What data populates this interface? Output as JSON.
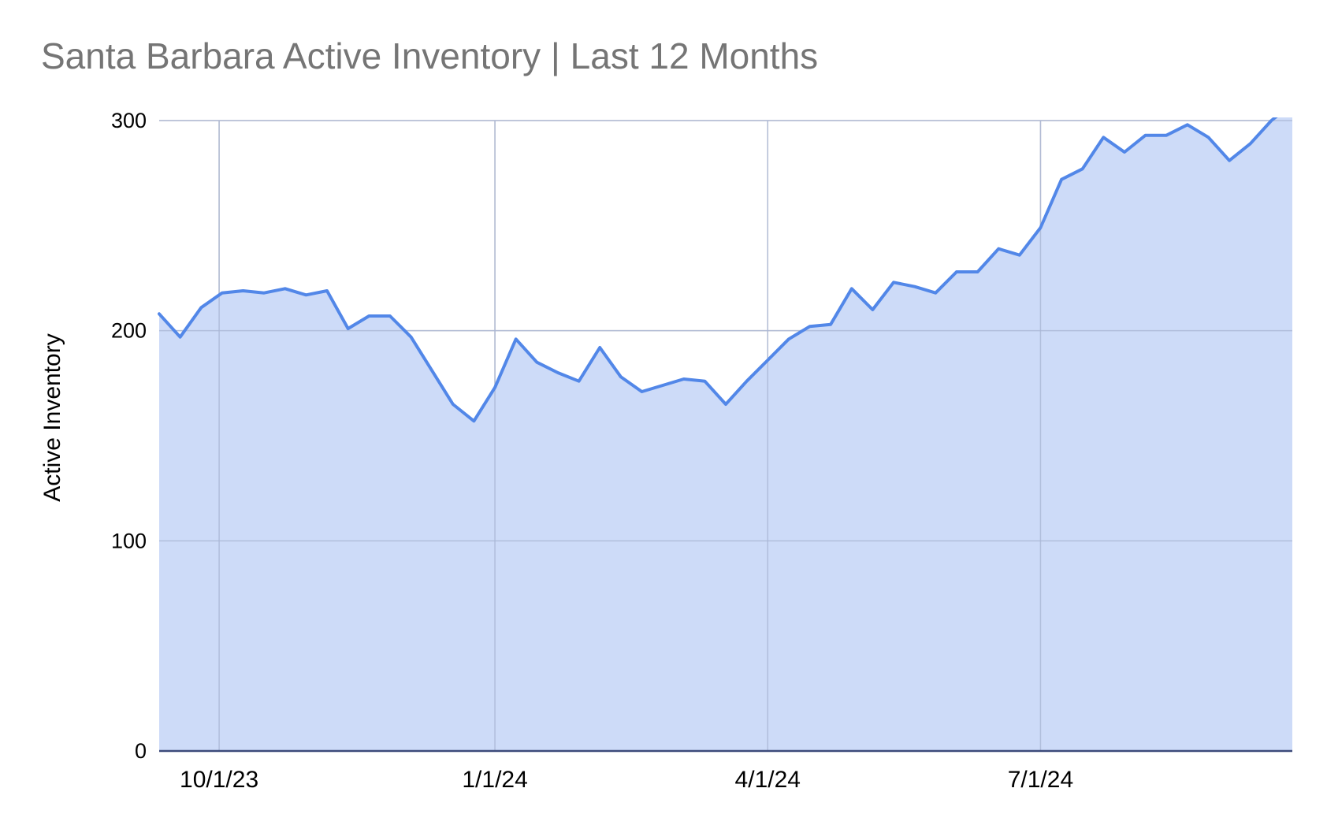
{
  "chart_data": {
    "type": "area",
    "title": "Santa Barbara Active Inventory | Last 12 Months",
    "xlabel": "",
    "ylabel": "Active Inventory",
    "ylim": [
      0,
      300
    ],
    "y_ticks": [
      0,
      100,
      200,
      300
    ],
    "x_range": [
      "2023-09-11",
      "2024-09-23"
    ],
    "x_ticks": [
      {
        "date": "2023-10-01",
        "label": "10/1/23"
      },
      {
        "date": "2024-01-01",
        "label": "1/1/24"
      },
      {
        "date": "2024-04-01",
        "label": "4/1/24"
      },
      {
        "date": "2024-07-01",
        "label": "7/1/24"
      }
    ],
    "grid": true,
    "legend": "none",
    "colors": {
      "line": "#5287e8",
      "fill": "#cad9f8",
      "grid": "#cccccc",
      "baseline": "#3c4a7a"
    },
    "x": [
      "2023-09-11",
      "2023-09-18",
      "2023-09-25",
      "2023-10-02",
      "2023-10-09",
      "2023-10-16",
      "2023-10-23",
      "2023-10-30",
      "2023-11-06",
      "2023-11-13",
      "2023-11-20",
      "2023-11-27",
      "2023-12-04",
      "2023-12-11",
      "2023-12-18",
      "2023-12-25",
      "2024-01-01",
      "2024-01-08",
      "2024-01-15",
      "2024-01-22",
      "2024-01-29",
      "2024-02-05",
      "2024-02-12",
      "2024-02-19",
      "2024-02-26",
      "2024-03-04",
      "2024-03-11",
      "2024-03-18",
      "2024-03-25",
      "2024-04-01",
      "2024-04-08",
      "2024-04-15",
      "2024-04-22",
      "2024-04-29",
      "2024-05-06",
      "2024-05-13",
      "2024-05-20",
      "2024-05-27",
      "2024-06-03",
      "2024-06-10",
      "2024-06-17",
      "2024-06-24",
      "2024-07-01",
      "2024-07-08",
      "2024-07-15",
      "2024-07-22",
      "2024-07-29",
      "2024-08-05",
      "2024-08-12",
      "2024-08-19",
      "2024-08-26",
      "2024-09-02",
      "2024-09-09",
      "2024-09-16",
      "2024-09-23"
    ],
    "series": [
      {
        "values": [
          208,
          197,
          211,
          218,
          219,
          218,
          220,
          217,
          219,
          201,
          207,
          207,
          197,
          181,
          165,
          157,
          173,
          196,
          185,
          180,
          176,
          192,
          178,
          171,
          174,
          177,
          176,
          165,
          176,
          186,
          196,
          202,
          203,
          220,
          210,
          223,
          221,
          218,
          228,
          228,
          239,
          236,
          249,
          272,
          277,
          292,
          285,
          293,
          293,
          298,
          292,
          281,
          289,
          300,
          308
        ]
      }
    ]
  }
}
